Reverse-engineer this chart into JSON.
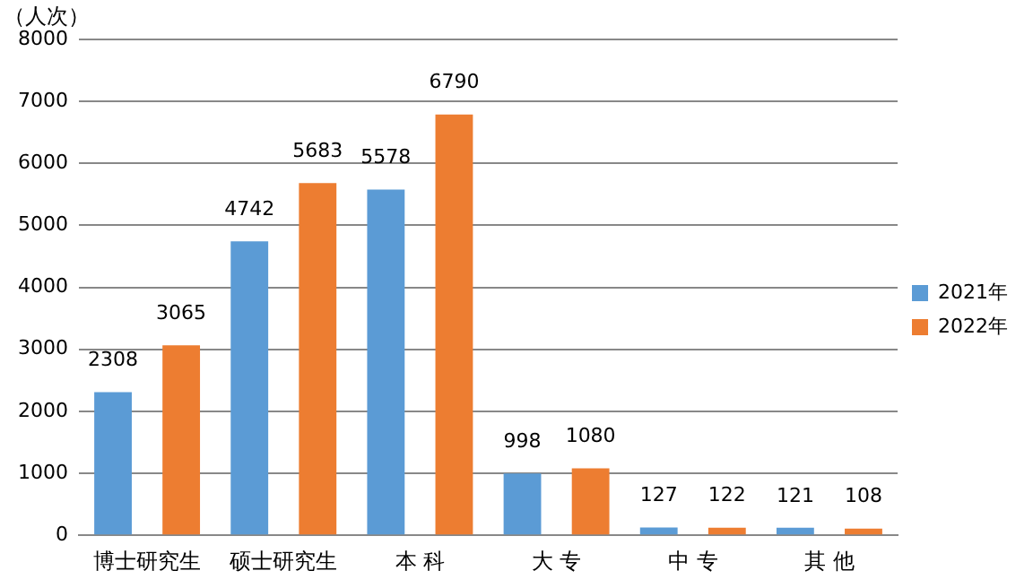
{
  "chart_data": {
    "type": "bar",
    "ylabel": "（人次）",
    "categories": [
      "博士研究生",
      "硕士研究生",
      "本 科",
      "大 专",
      "中 专",
      "其 他"
    ],
    "series": [
      {
        "name": "2021年",
        "color": "#5b9bd5",
        "values": [
          2308,
          4742,
          5578,
          998,
          127,
          121
        ]
      },
      {
        "name": "2022年",
        "color": "#ed7d31",
        "values": [
          3065,
          5683,
          6790,
          1080,
          122,
          108
        ]
      }
    ],
    "ylim": [
      0,
      8000
    ],
    "yticks": [
      0,
      1000,
      2000,
      3000,
      4000,
      5000,
      6000,
      7000,
      8000
    ],
    "grid": "y",
    "legend": "right",
    "data_labels": true
  }
}
